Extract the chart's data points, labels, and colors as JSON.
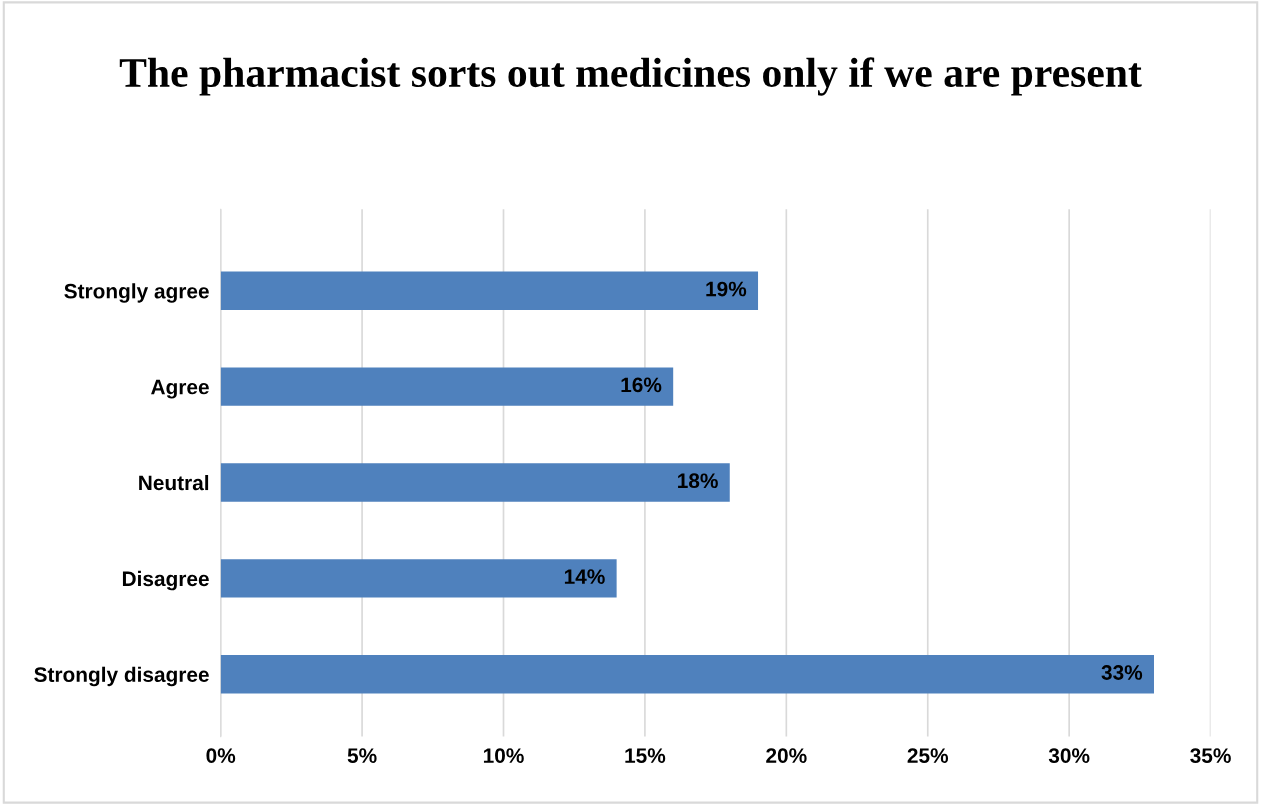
{
  "chart_data": {
    "type": "bar",
    "orientation": "horizontal",
    "title": "The pharmacist sorts out medicines only if we are present",
    "categories": [
      "Strongly agree",
      "Agree",
      "Neutral",
      "Disagree",
      "Strongly disagree"
    ],
    "values": [
      19,
      16,
      18,
      14,
      33
    ],
    "value_labels": [
      "19%",
      "16%",
      "18%",
      "14%",
      "33%"
    ],
    "color": "#4f81bd",
    "xlim": [
      0,
      35
    ],
    "xticks": [
      {
        "value": 0,
        "label": "0%"
      },
      {
        "value": 5,
        "label": "5%"
      },
      {
        "value": 10,
        "label": "10%"
      },
      {
        "value": 15,
        "label": "15%"
      },
      {
        "value": 20,
        "label": "20%"
      },
      {
        "value": 25,
        "label": "25%"
      },
      {
        "value": 30,
        "label": "30%"
      },
      {
        "value": 35,
        "label": "35%"
      }
    ],
    "grid": "x"
  }
}
